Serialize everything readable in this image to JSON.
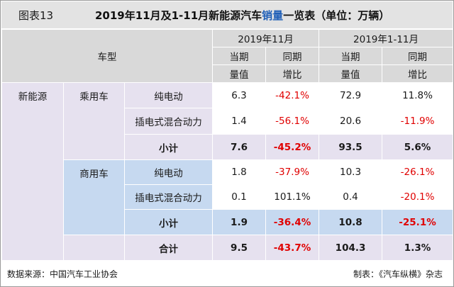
{
  "title_bar": {
    "figure_no": "图表13",
    "title_prefix": "2019年11月及1-11月新能源汽车",
    "title_highlight": "销量",
    "title_suffix": "一览表（单位：万辆）"
  },
  "header": {
    "vehicle_type": "车型",
    "period_nov": "2019年11月",
    "period_ytd": "2019年1-11月",
    "col_current": [
      "当期",
      "量值"
    ],
    "col_yoy": [
      "同期",
      "增比"
    ]
  },
  "row_labels": {
    "category": "新能源",
    "passenger": "乘用车",
    "commercial": "商用车",
    "bev": "纯电动",
    "phev": "插电式混合动力",
    "subtotal": "小计",
    "total": "合计"
  },
  "rows": [
    {
      "nov_val": "6.3",
      "nov_yoy": "-42.1%",
      "ytd_val": "72.9",
      "ytd_yoy": "11.8%"
    },
    {
      "nov_val": "1.4",
      "nov_yoy": "-56.1%",
      "ytd_val": "20.6",
      "ytd_yoy": "-11.9%"
    },
    {
      "nov_val": "7.6",
      "nov_yoy": "-45.2%",
      "ytd_val": "93.5",
      "ytd_yoy": "5.6%"
    },
    {
      "nov_val": "1.8",
      "nov_yoy": "-37.9%",
      "ytd_val": "10.3",
      "ytd_yoy": "-26.1%"
    },
    {
      "nov_val": "0.1",
      "nov_yoy": "101.1%",
      "ytd_val": "0.4",
      "ytd_yoy": "-20.1%"
    },
    {
      "nov_val": "1.9",
      "nov_yoy": "-36.4%",
      "ytd_val": "10.8",
      "ytd_yoy": "-25.1%"
    },
    {
      "nov_val": "9.5",
      "nov_yoy": "-43.7%",
      "ytd_val": "104.3",
      "ytd_yoy": "1.3%"
    }
  ],
  "colors": {
    "negative": "#e00000",
    "title_highlight": "#1f5fb7",
    "passenger_fill": "#e6e1ef",
    "commercial_fill": "#c6d9f0",
    "header_fill": "#d9d9d9"
  },
  "footer": {
    "source": "数据来源：中国汽车工业协会",
    "maker": "制表：《汽车纵横》杂志"
  }
}
